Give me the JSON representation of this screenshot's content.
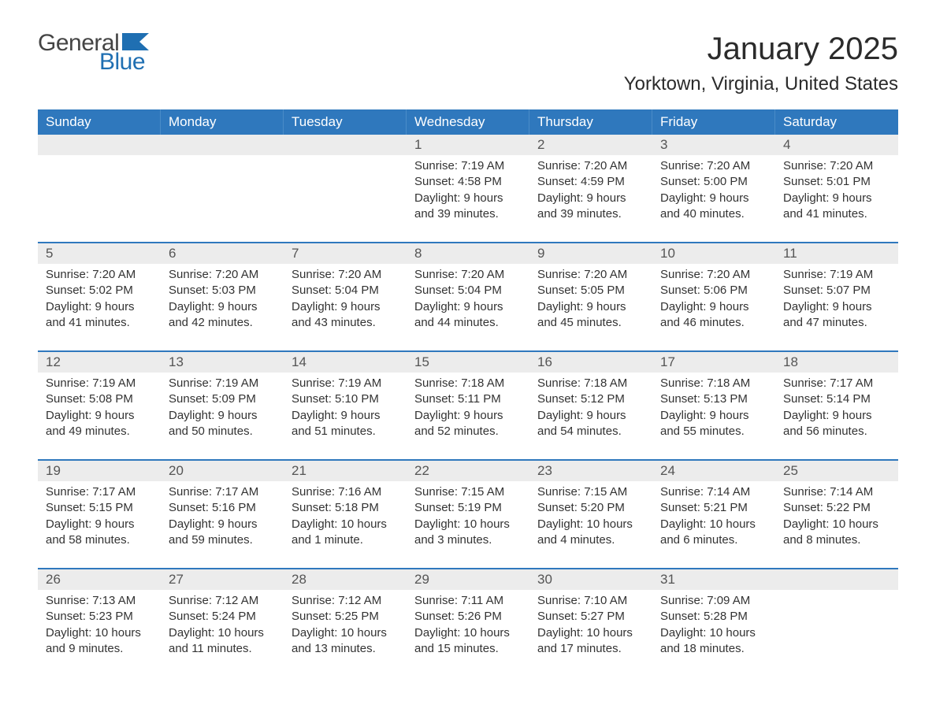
{
  "logo": {
    "text1": "General",
    "text2": "Blue",
    "flag_color": "#1f6fb2"
  },
  "header": {
    "month_title": "January 2025",
    "location": "Yorktown, Virginia, United States"
  },
  "colors": {
    "header_bg": "#2f78bd",
    "header_text": "#ffffff",
    "daynum_bg": "#ececec",
    "body_text": "#333333",
    "week_border": "#2f78bd",
    "logo_gray": "#444444",
    "logo_blue": "#1f6fb2",
    "page_bg": "#ffffff"
  },
  "layout": {
    "columns": 7,
    "rows": 5,
    "body_fontsize": 15,
    "daynum_fontsize": 17,
    "weekday_fontsize": 17,
    "title_fontsize": 40,
    "location_fontsize": 24
  },
  "weekdays": [
    "Sunday",
    "Monday",
    "Tuesday",
    "Wednesday",
    "Thursday",
    "Friday",
    "Saturday"
  ],
  "weeks": [
    [
      null,
      null,
      null,
      {
        "day": "1",
        "sunrise": "Sunrise: 7:19 AM",
        "sunset": "Sunset: 4:58 PM",
        "daylight1": "Daylight: 9 hours",
        "daylight2": "and 39 minutes."
      },
      {
        "day": "2",
        "sunrise": "Sunrise: 7:20 AM",
        "sunset": "Sunset: 4:59 PM",
        "daylight1": "Daylight: 9 hours",
        "daylight2": "and 39 minutes."
      },
      {
        "day": "3",
        "sunrise": "Sunrise: 7:20 AM",
        "sunset": "Sunset: 5:00 PM",
        "daylight1": "Daylight: 9 hours",
        "daylight2": "and 40 minutes."
      },
      {
        "day": "4",
        "sunrise": "Sunrise: 7:20 AM",
        "sunset": "Sunset: 5:01 PM",
        "daylight1": "Daylight: 9 hours",
        "daylight2": "and 41 minutes."
      }
    ],
    [
      {
        "day": "5",
        "sunrise": "Sunrise: 7:20 AM",
        "sunset": "Sunset: 5:02 PM",
        "daylight1": "Daylight: 9 hours",
        "daylight2": "and 41 minutes."
      },
      {
        "day": "6",
        "sunrise": "Sunrise: 7:20 AM",
        "sunset": "Sunset: 5:03 PM",
        "daylight1": "Daylight: 9 hours",
        "daylight2": "and 42 minutes."
      },
      {
        "day": "7",
        "sunrise": "Sunrise: 7:20 AM",
        "sunset": "Sunset: 5:04 PM",
        "daylight1": "Daylight: 9 hours",
        "daylight2": "and 43 minutes."
      },
      {
        "day": "8",
        "sunrise": "Sunrise: 7:20 AM",
        "sunset": "Sunset: 5:04 PM",
        "daylight1": "Daylight: 9 hours",
        "daylight2": "and 44 minutes."
      },
      {
        "day": "9",
        "sunrise": "Sunrise: 7:20 AM",
        "sunset": "Sunset: 5:05 PM",
        "daylight1": "Daylight: 9 hours",
        "daylight2": "and 45 minutes."
      },
      {
        "day": "10",
        "sunrise": "Sunrise: 7:20 AM",
        "sunset": "Sunset: 5:06 PM",
        "daylight1": "Daylight: 9 hours",
        "daylight2": "and 46 minutes."
      },
      {
        "day": "11",
        "sunrise": "Sunrise: 7:19 AM",
        "sunset": "Sunset: 5:07 PM",
        "daylight1": "Daylight: 9 hours",
        "daylight2": "and 47 minutes."
      }
    ],
    [
      {
        "day": "12",
        "sunrise": "Sunrise: 7:19 AM",
        "sunset": "Sunset: 5:08 PM",
        "daylight1": "Daylight: 9 hours",
        "daylight2": "and 49 minutes."
      },
      {
        "day": "13",
        "sunrise": "Sunrise: 7:19 AM",
        "sunset": "Sunset: 5:09 PM",
        "daylight1": "Daylight: 9 hours",
        "daylight2": "and 50 minutes."
      },
      {
        "day": "14",
        "sunrise": "Sunrise: 7:19 AM",
        "sunset": "Sunset: 5:10 PM",
        "daylight1": "Daylight: 9 hours",
        "daylight2": "and 51 minutes."
      },
      {
        "day": "15",
        "sunrise": "Sunrise: 7:18 AM",
        "sunset": "Sunset: 5:11 PM",
        "daylight1": "Daylight: 9 hours",
        "daylight2": "and 52 minutes."
      },
      {
        "day": "16",
        "sunrise": "Sunrise: 7:18 AM",
        "sunset": "Sunset: 5:12 PM",
        "daylight1": "Daylight: 9 hours",
        "daylight2": "and 54 minutes."
      },
      {
        "day": "17",
        "sunrise": "Sunrise: 7:18 AM",
        "sunset": "Sunset: 5:13 PM",
        "daylight1": "Daylight: 9 hours",
        "daylight2": "and 55 minutes."
      },
      {
        "day": "18",
        "sunrise": "Sunrise: 7:17 AM",
        "sunset": "Sunset: 5:14 PM",
        "daylight1": "Daylight: 9 hours",
        "daylight2": "and 56 minutes."
      }
    ],
    [
      {
        "day": "19",
        "sunrise": "Sunrise: 7:17 AM",
        "sunset": "Sunset: 5:15 PM",
        "daylight1": "Daylight: 9 hours",
        "daylight2": "and 58 minutes."
      },
      {
        "day": "20",
        "sunrise": "Sunrise: 7:17 AM",
        "sunset": "Sunset: 5:16 PM",
        "daylight1": "Daylight: 9 hours",
        "daylight2": "and 59 minutes."
      },
      {
        "day": "21",
        "sunrise": "Sunrise: 7:16 AM",
        "sunset": "Sunset: 5:18 PM",
        "daylight1": "Daylight: 10 hours",
        "daylight2": "and 1 minute."
      },
      {
        "day": "22",
        "sunrise": "Sunrise: 7:15 AM",
        "sunset": "Sunset: 5:19 PM",
        "daylight1": "Daylight: 10 hours",
        "daylight2": "and 3 minutes."
      },
      {
        "day": "23",
        "sunrise": "Sunrise: 7:15 AM",
        "sunset": "Sunset: 5:20 PM",
        "daylight1": "Daylight: 10 hours",
        "daylight2": "and 4 minutes."
      },
      {
        "day": "24",
        "sunrise": "Sunrise: 7:14 AM",
        "sunset": "Sunset: 5:21 PM",
        "daylight1": "Daylight: 10 hours",
        "daylight2": "and 6 minutes."
      },
      {
        "day": "25",
        "sunrise": "Sunrise: 7:14 AM",
        "sunset": "Sunset: 5:22 PM",
        "daylight1": "Daylight: 10 hours",
        "daylight2": "and 8 minutes."
      }
    ],
    [
      {
        "day": "26",
        "sunrise": "Sunrise: 7:13 AM",
        "sunset": "Sunset: 5:23 PM",
        "daylight1": "Daylight: 10 hours",
        "daylight2": "and 9 minutes."
      },
      {
        "day": "27",
        "sunrise": "Sunrise: 7:12 AM",
        "sunset": "Sunset: 5:24 PM",
        "daylight1": "Daylight: 10 hours",
        "daylight2": "and 11 minutes."
      },
      {
        "day": "28",
        "sunrise": "Sunrise: 7:12 AM",
        "sunset": "Sunset: 5:25 PM",
        "daylight1": "Daylight: 10 hours",
        "daylight2": "and 13 minutes."
      },
      {
        "day": "29",
        "sunrise": "Sunrise: 7:11 AM",
        "sunset": "Sunset: 5:26 PM",
        "daylight1": "Daylight: 10 hours",
        "daylight2": "and 15 minutes."
      },
      {
        "day": "30",
        "sunrise": "Sunrise: 7:10 AM",
        "sunset": "Sunset: 5:27 PM",
        "daylight1": "Daylight: 10 hours",
        "daylight2": "and 17 minutes."
      },
      {
        "day": "31",
        "sunrise": "Sunrise: 7:09 AM",
        "sunset": "Sunset: 5:28 PM",
        "daylight1": "Daylight: 10 hours",
        "daylight2": "and 18 minutes."
      },
      null
    ]
  ]
}
